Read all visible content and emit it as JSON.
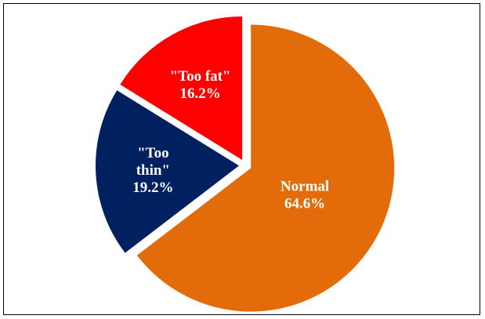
{
  "chart_data": {
    "type": "pie",
    "title": "",
    "slices": [
      {
        "label_lines": [
          "Normal",
          "64.6%"
        ],
        "category": "Normal",
        "value": 64.6,
        "color": "#E36C0A"
      },
      {
        "label_lines": [
          "\"Too",
          "thin\"",
          "19.2%"
        ],
        "category": "\"Too thin\"",
        "value": 19.2,
        "color": "#002060"
      },
      {
        "label_lines": [
          "\"Too fat\"",
          "16.2%"
        ],
        "category": "\"Too fat\"",
        "value": 16.2,
        "color": "#FF0000"
      }
    ],
    "start_angle_deg": 0,
    "direction": "clockwise",
    "exploded": true,
    "legend": "none",
    "data_labels": "inside"
  }
}
